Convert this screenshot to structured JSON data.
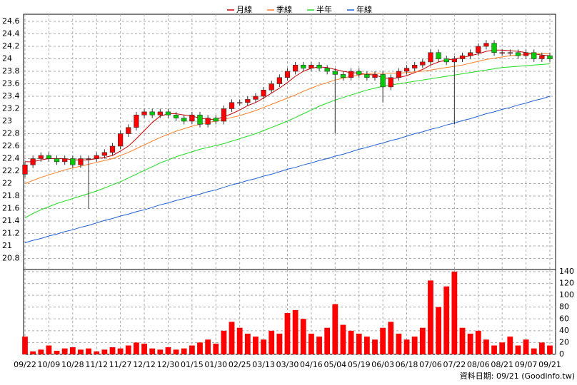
{
  "chart_data": {
    "type": "candlestick",
    "categories": [
      "09/22",
      null,
      null,
      "10/09",
      null,
      null,
      "10/28",
      null,
      null,
      "11/12",
      null,
      null,
      "11/27",
      null,
      null,
      "12/12",
      null,
      null,
      "12/30",
      null,
      null,
      "01/15",
      null,
      null,
      "01/30",
      null,
      null,
      "02/25",
      null,
      null,
      "03/13",
      null,
      null,
      "03/30",
      null,
      null,
      "04/16",
      null,
      null,
      "05/04",
      null,
      null,
      "05/19",
      null,
      null,
      "06/03",
      null,
      null,
      "06/18",
      null,
      null,
      "07/06",
      null,
      null,
      "07/22",
      null,
      null,
      "08/06",
      null,
      null,
      "08/21",
      null,
      null,
      "09/07",
      null,
      null,
      "09/21"
    ],
    "open": [
      22.15,
      22.3,
      22.4,
      22.45,
      22.4,
      22.35,
      22.4,
      22.3,
      22.4,
      22.4,
      22.45,
      22.5,
      22.6,
      22.8,
      22.9,
      23.1,
      23.15,
      23.1,
      23.15,
      23.1,
      23.05,
      23.0,
      23.1,
      22.95,
      23.05,
      23.0,
      23.2,
      23.3,
      23.3,
      23.35,
      23.4,
      23.5,
      23.6,
      23.7,
      23.8,
      23.9,
      23.85,
      23.9,
      23.85,
      23.8,
      23.75,
      23.7,
      23.8,
      23.75,
      23.7,
      23.75,
      23.55,
      23.7,
      23.8,
      23.85,
      23.9,
      23.95,
      24.1,
      24.0,
      23.95,
      24.0,
      24.05,
      24.1,
      24.2,
      24.25,
      24.1,
      24.1,
      24.1,
      24.05,
      24.1,
      24.0,
      24.05
    ],
    "high": [
      22.35,
      22.45,
      22.5,
      22.5,
      22.45,
      22.45,
      22.45,
      22.45,
      22.45,
      22.5,
      22.55,
      22.65,
      22.85,
      22.95,
      23.15,
      23.2,
      23.2,
      23.2,
      23.2,
      23.15,
      23.1,
      23.15,
      23.15,
      23.1,
      23.1,
      23.25,
      23.35,
      23.35,
      23.4,
      23.45,
      23.55,
      23.65,
      23.75,
      23.85,
      23.95,
      23.95,
      23.95,
      23.95,
      23.9,
      23.85,
      23.8,
      23.85,
      23.85,
      23.8,
      23.8,
      23.8,
      23.75,
      23.85,
      23.9,
      23.95,
      24.0,
      24.15,
      24.15,
      24.05,
      24.05,
      24.1,
      24.15,
      24.25,
      24.3,
      24.3,
      24.15,
      24.15,
      24.15,
      24.15,
      24.15,
      24.1,
      24.1
    ],
    "low": [
      22.1,
      22.25,
      22.35,
      22.35,
      22.3,
      22.3,
      22.25,
      22.25,
      21.6,
      22.35,
      22.4,
      22.45,
      22.55,
      22.75,
      22.85,
      23.05,
      23.05,
      23.05,
      23.05,
      23.0,
      22.95,
      22.95,
      22.9,
      22.9,
      22.95,
      22.95,
      23.15,
      23.25,
      23.25,
      23.3,
      23.35,
      23.45,
      23.55,
      23.65,
      23.75,
      23.8,
      23.8,
      23.8,
      23.75,
      22.8,
      23.65,
      23.65,
      23.7,
      23.65,
      23.65,
      23.3,
      23.5,
      23.65,
      23.75,
      23.8,
      23.85,
      23.9,
      23.95,
      23.9,
      22.95,
      23.95,
      24.0,
      24.05,
      24.15,
      24.05,
      24.05,
      24.05,
      24.0,
      24.0,
      23.95,
      23.95,
      23.95
    ],
    "close": [
      22.3,
      22.4,
      22.45,
      22.4,
      22.35,
      22.4,
      22.3,
      22.4,
      22.4,
      22.45,
      22.5,
      22.6,
      22.8,
      22.9,
      23.1,
      23.15,
      23.1,
      23.15,
      23.1,
      23.05,
      23.0,
      23.1,
      22.95,
      23.05,
      23.0,
      23.2,
      23.3,
      23.3,
      23.35,
      23.4,
      23.5,
      23.6,
      23.7,
      23.8,
      23.9,
      23.85,
      23.9,
      23.85,
      23.8,
      23.75,
      23.7,
      23.8,
      23.75,
      23.7,
      23.75,
      23.55,
      23.7,
      23.8,
      23.85,
      23.9,
      23.95,
      24.1,
      24.0,
      23.95,
      24.0,
      24.05,
      24.1,
      24.2,
      24.25,
      24.1,
      24.1,
      24.1,
      24.05,
      24.1,
      24.0,
      24.05,
      24.0
    ],
    "up_color": "#ff0000",
    "down_color": "#00cc00",
    "series": [
      {
        "name": "月線",
        "color": "#cc0000",
        "values": [
          22.35,
          22.35,
          22.38,
          22.4,
          22.4,
          22.4,
          22.38,
          22.38,
          22.38,
          22.4,
          22.42,
          22.45,
          22.52,
          22.6,
          22.72,
          22.85,
          22.98,
          23.08,
          23.12,
          23.12,
          23.1,
          23.08,
          23.05,
          23.03,
          23.03,
          23.07,
          23.12,
          23.18,
          23.25,
          23.3,
          23.37,
          23.45,
          23.53,
          23.62,
          23.72,
          23.8,
          23.85,
          23.87,
          23.86,
          23.83,
          23.8,
          23.78,
          23.77,
          23.75,
          23.74,
          23.7,
          23.68,
          23.7,
          23.73,
          23.78,
          23.83,
          23.9,
          23.95,
          23.98,
          24.0,
          24.02,
          24.05,
          24.08,
          24.12,
          24.14,
          24.14,
          24.13,
          24.12,
          24.1,
          24.08,
          24.06,
          24.05
        ]
      },
      {
        "name": "季線",
        "color": "#ff7f27",
        "values": [
          22.0,
          22.05,
          22.1,
          22.14,
          22.18,
          22.22,
          22.25,
          22.28,
          22.31,
          22.34,
          22.37,
          22.4,
          22.45,
          22.5,
          22.56,
          22.62,
          22.68,
          22.74,
          22.79,
          22.84,
          22.88,
          22.92,
          22.95,
          22.98,
          23.0,
          23.03,
          23.06,
          23.09,
          23.13,
          23.17,
          23.22,
          23.27,
          23.32,
          23.37,
          23.42,
          23.48,
          23.53,
          23.58,
          23.62,
          23.66,
          23.69,
          23.72,
          23.74,
          23.76,
          23.77,
          23.77,
          23.77,
          23.77,
          23.78,
          23.79,
          23.8,
          23.82,
          23.84,
          23.86,
          23.88,
          23.9,
          23.93,
          23.96,
          23.99,
          24.01,
          24.03,
          24.05,
          24.06,
          24.07,
          24.08,
          24.08,
          24.08
        ]
      },
      {
        "name": "半年",
        "color": "#22dd22",
        "values": [
          21.45,
          21.52,
          21.58,
          21.63,
          21.68,
          21.72,
          21.76,
          21.8,
          21.84,
          21.88,
          21.93,
          21.98,
          22.03,
          22.09,
          22.15,
          22.21,
          22.27,
          22.33,
          22.38,
          22.43,
          22.47,
          22.51,
          22.55,
          22.58,
          22.61,
          22.64,
          22.68,
          22.72,
          22.76,
          22.8,
          22.85,
          22.9,
          22.95,
          23.0,
          23.06,
          23.12,
          23.18,
          23.24,
          23.29,
          23.34,
          23.38,
          23.42,
          23.46,
          23.5,
          23.53,
          23.56,
          23.58,
          23.6,
          23.62,
          23.64,
          23.66,
          23.68,
          23.7,
          23.72,
          23.74,
          23.76,
          23.78,
          23.8,
          23.82,
          23.84,
          23.86,
          23.87,
          23.88,
          23.89,
          23.9,
          23.91,
          23.92
        ]
      },
      {
        "name": "年線",
        "color": "#1e5fd6",
        "values": [
          21.05,
          21.09,
          21.12,
          21.16,
          21.19,
          21.23,
          21.26,
          21.3,
          21.33,
          21.37,
          21.41,
          21.44,
          21.48,
          21.51,
          21.55,
          21.58,
          21.62,
          21.66,
          21.69,
          21.73,
          21.76,
          21.8,
          21.83,
          21.87,
          21.9,
          21.94,
          21.98,
          22.01,
          22.05,
          22.08,
          22.12,
          22.15,
          22.19,
          22.23,
          22.26,
          22.3,
          22.33,
          22.37,
          22.4,
          22.44,
          22.47,
          22.51,
          22.55,
          22.58,
          22.62,
          22.65,
          22.69,
          22.72,
          22.76,
          22.8,
          22.83,
          22.87,
          22.9,
          22.94,
          22.97,
          23.01,
          23.04,
          23.08,
          23.12,
          23.15,
          23.19,
          23.22,
          23.26,
          23.29,
          23.33,
          23.36,
          23.4
        ]
      }
    ],
    "ylim": [
      20.6,
      24.6
    ],
    "yticks": [
      20.8,
      21,
      21.2,
      21.4,
      21.6,
      21.8,
      22,
      22.2,
      22.4,
      22.6,
      22.8,
      23,
      23.2,
      23.4,
      23.6,
      23.8,
      24,
      24.2,
      24.4,
      24.6
    ],
    "grid": true,
    "volume": {
      "color": "#ff0000",
      "values": [
        30,
        5,
        8,
        15,
        6,
        10,
        12,
        8,
        10,
        5,
        8,
        12,
        10,
        15,
        20,
        18,
        10,
        8,
        12,
        8,
        10,
        15,
        20,
        25,
        18,
        40,
        55,
        45,
        35,
        30,
        25,
        40,
        35,
        70,
        75,
        60,
        35,
        30,
        45,
        85,
        50,
        40,
        35,
        30,
        25,
        45,
        55,
        35,
        25,
        30,
        45,
        125,
        80,
        115,
        140,
        45,
        35,
        40,
        25,
        15,
        20,
        30,
        15,
        25,
        10,
        20,
        15
      ],
      "ylim": [
        0,
        140
      ],
      "yticks": [
        0,
        20,
        40,
        60,
        80,
        100,
        120,
        140
      ]
    },
    "footnote": "資料日期: 09/21 (Goodinfo.tw)"
  }
}
